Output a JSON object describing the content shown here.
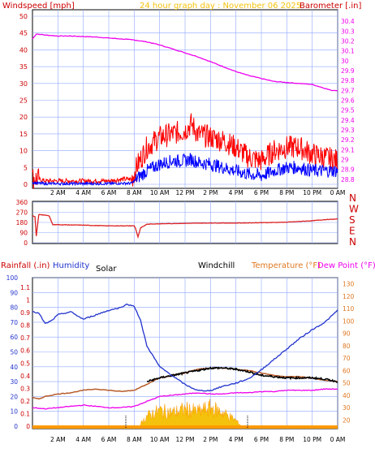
{
  "title": "24 hour graph day : November 06 2025",
  "colors": {
    "wind_axis": "#cc0000",
    "gust": "#ff0000",
    "wind_avg": "#0000ff",
    "barometer": "#ee00ee",
    "direction": "#dd2222",
    "rainfall": "#cc0000",
    "humidity": "#2233cc",
    "solar": "#f4c20d",
    "solar_edge": "#ff9900",
    "windchill": "#000000",
    "temperature": "#b85c2a",
    "dewpoint": "#ee00ee",
    "temp_axis": "#e07820",
    "grid": "#8fa8ff"
  },
  "time_ticks": [
    "2 AM",
    "4 AM",
    "6 AM",
    "8 AM",
    "10 AM",
    "12 PM",
    "2 PM",
    "4 PM",
    "6 PM",
    "8 PM",
    "10 PM",
    "0 AM"
  ],
  "chart_data": [
    {
      "type": "line",
      "name": "wind-barometer",
      "title": "24 hour graph day : November 06 2025",
      "left_axis_label": "Windspeed [mph]",
      "right_axis_label": "Barometer [.in]",
      "left_ticks": [
        "0",
        "5",
        "10",
        "15",
        "20",
        "25",
        "30",
        "35",
        "40",
        "45",
        "50"
      ],
      "right_ticks": [
        "28.8",
        "28.9",
        "29",
        "29.1",
        "29.2",
        "29.3",
        "29.4",
        "29.5",
        "29.6",
        "29.7",
        "29.8",
        "29.9",
        "30",
        "30.1",
        "30.2",
        "30.3",
        "30.4"
      ],
      "ylim_left": [
        0,
        50
      ],
      "ylim_right": [
        28.75,
        30.45
      ],
      "xlim_hours": [
        0,
        24
      ],
      "series": [
        {
          "key": "gust",
          "hours": [
            0,
            0.5,
            1,
            2,
            3,
            4,
            5,
            6,
            7,
            7.8,
            8.3,
            9,
            10,
            11,
            12,
            12.5,
            13,
            14,
            15,
            16,
            17,
            18,
            19,
            20,
            21,
            22,
            23,
            24
          ],
          "values": [
            2,
            1.5,
            1,
            1,
            1,
            1,
            1,
            1,
            1.5,
            1.5,
            6,
            11,
            14,
            15,
            16,
            18,
            15,
            14,
            13,
            11,
            8,
            7,
            10,
            11,
            11,
            9,
            8,
            7
          ]
        },
        {
          "key": "wind_avg",
          "hours": [
            0,
            0.5,
            1,
            2,
            3,
            4,
            5,
            6,
            7,
            7.8,
            8.3,
            9,
            10,
            11,
            12,
            12.5,
            13,
            14,
            15,
            16,
            17,
            18,
            19,
            20,
            21,
            22,
            23,
            24
          ],
          "values": [
            0.5,
            0.3,
            0.2,
            0.2,
            0.2,
            0.2,
            0.2,
            0.2,
            0.3,
            0.3,
            2,
            4,
            6,
            7,
            7,
            7.5,
            6.5,
            6,
            5,
            4,
            3,
            2.5,
            4,
            5,
            5,
            4,
            4,
            4
          ]
        },
        {
          "key": "barometer",
          "hours": [
            0,
            0.3,
            1,
            2,
            3,
            4,
            5,
            6,
            7,
            8,
            9,
            10,
            11,
            12,
            13,
            14,
            15,
            16,
            17,
            18,
            19,
            20,
            21,
            22,
            23,
            23.5,
            24
          ],
          "values": [
            30.22,
            30.27,
            30.26,
            30.25,
            30.25,
            30.245,
            30.24,
            30.23,
            30.22,
            30.21,
            30.19,
            30.16,
            30.12,
            30.08,
            30.04,
            29.99,
            29.94,
            29.89,
            29.85,
            29.82,
            29.79,
            29.78,
            29.77,
            29.76,
            29.72,
            29.7,
            29.7
          ]
        }
      ]
    },
    {
      "type": "line",
      "name": "wind-direction",
      "left_ticks": [
        "0",
        "90",
        "180",
        "270",
        "360"
      ],
      "right_labels": [
        "N",
        "W",
        "S",
        "E",
        "N"
      ],
      "ylim": [
        0,
        360
      ],
      "xlim_hours": [
        0,
        24
      ],
      "series": [
        {
          "key": "direction",
          "hours": [
            0,
            0.2,
            0.3,
            0.5,
            1,
            1.3,
            1.6,
            2,
            3,
            4,
            5,
            6,
            7,
            7.5,
            8,
            8.1,
            8.3,
            8.5,
            9,
            10,
            12,
            14,
            16,
            18,
            20,
            22,
            23,
            24
          ],
          "values": [
            240,
            230,
            60,
            250,
            245,
            240,
            160,
            160,
            158,
            156,
            152,
            150,
            150,
            150,
            150,
            130,
            50,
            130,
            165,
            168,
            172,
            175,
            175,
            178,
            182,
            195,
            205,
            210
          ]
        }
      ]
    },
    {
      "type": "line",
      "name": "rain-humidity-temperature",
      "labels": {
        "rainfall": "Rainfall (.in)",
        "humidity": "Humidity",
        "solar": "Solar",
        "windchill": "Windchill",
        "temperature": "Temperature (°F)",
        "dewpoint": "Dew Point (°F)"
      },
      "left_ticks_humidity": [
        "0",
        "10",
        "20",
        "30",
        "40",
        "50",
        "60",
        "70",
        "80",
        "90",
        "100"
      ],
      "left_ticks_rain": [
        "0",
        "0.1",
        "0.2",
        "0.3",
        "0.4",
        "0.5",
        "0.6",
        "0.7",
        "0.8",
        "0.9",
        "1",
        "1.1"
      ],
      "right_ticks_temp": [
        "20",
        "30",
        "40",
        "50",
        "60",
        "70",
        "80",
        "90",
        "100",
        "110",
        "120",
        "130"
      ],
      "ylim_humidity": [
        0,
        100
      ],
      "ylim_temp": [
        13,
        135
      ],
      "xlim_hours": [
        0,
        24
      ],
      "series": [
        {
          "key": "humidity",
          "hours": [
            0,
            0.5,
            1,
            1.5,
            2,
            3,
            4,
            5,
            6,
            7,
            7.3,
            8,
            8.5,
            9,
            9.5,
            10,
            11,
            12,
            13,
            14,
            15,
            16,
            17,
            18,
            19,
            20,
            21,
            22,
            23,
            24
          ],
          "values": [
            77,
            76,
            69,
            71,
            75,
            77,
            72,
            75,
            78,
            80,
            82,
            81,
            71,
            54,
            47,
            40,
            34,
            28,
            24,
            24,
            27,
            29,
            32,
            38,
            45,
            52,
            59,
            65,
            70,
            78
          ]
        },
        {
          "key": "temperature",
          "hours": [
            0,
            0.5,
            1,
            2,
            3,
            4,
            5,
            6,
            7,
            8,
            9,
            10,
            11,
            12,
            13,
            14,
            15,
            16,
            17,
            18,
            19,
            20,
            21,
            22,
            23,
            24
          ],
          "values": [
            38,
            37,
            39,
            41,
            42,
            44,
            45,
            44,
            43,
            44,
            49,
            54,
            56,
            58,
            61,
            62,
            62,
            61,
            60,
            58,
            56,
            55,
            55,
            54,
            52,
            51
          ]
        },
        {
          "key": "windchill",
          "hours": [
            9,
            10,
            11,
            12,
            13,
            14,
            15,
            16,
            17,
            18,
            19,
            20,
            21,
            22,
            23,
            24
          ],
          "values": [
            51,
            54,
            56,
            58,
            60,
            62,
            62,
            61,
            59,
            56,
            55,
            54,
            54,
            54,
            53,
            51
          ]
        },
        {
          "key": "dewpoint",
          "hours": [
            0,
            1,
            2,
            3,
            4,
            5,
            6,
            7,
            8,
            9,
            10,
            11,
            12,
            13,
            14,
            15,
            16,
            17,
            18,
            19,
            20,
            21,
            22,
            23,
            24
          ],
          "values": [
            30,
            29,
            30,
            31,
            32,
            31,
            30,
            30,
            31,
            35,
            39,
            40,
            41,
            42,
            41,
            41,
            42,
            42,
            43,
            43,
            44,
            44,
            44,
            45,
            45
          ]
        },
        {
          "key": "solar",
          "hours": [
            8.3,
            9,
            10,
            11,
            12,
            13,
            14,
            15,
            16,
            16.5
          ],
          "values": [
            0,
            20,
            30,
            26,
            32,
            28,
            35,
            26,
            12,
            0
          ]
        }
      ]
    }
  ]
}
